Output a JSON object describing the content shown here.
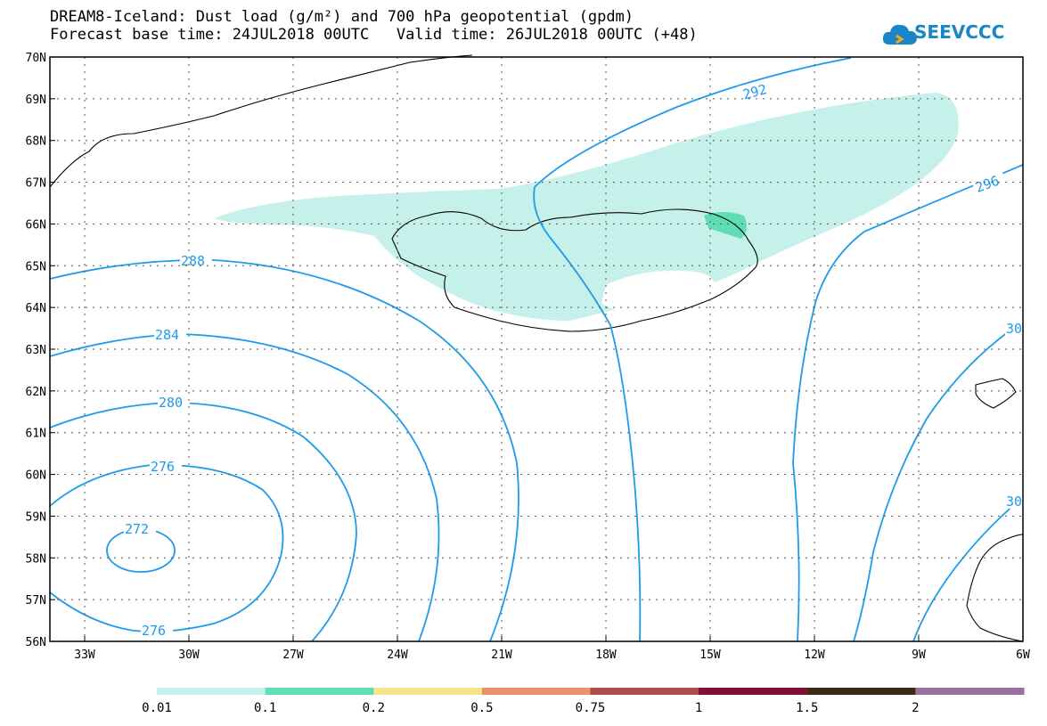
{
  "title": {
    "line1": "DREAM8-Iceland: Dust load (g/m²) and 700 hPa geopotential (gpdm)",
    "line2": "Forecast base time: 24JUL2018 00UTC   Valid time: 26JUL2018 00UTC (+48)"
  },
  "logo": {
    "text": "SEEVCCC",
    "icon": "cloud-icon"
  },
  "axes": {
    "lat_labels": [
      "70N",
      "69N",
      "68N",
      "67N",
      "66N",
      "65N",
      "64N",
      "63N",
      "62N",
      "61N",
      "60N",
      "59N",
      "58N",
      "57N",
      "56N"
    ],
    "lon_labels": [
      "33W",
      "30W",
      "27W",
      "24W",
      "21W",
      "18W",
      "15W",
      "12W",
      "9W",
      "6W"
    ]
  },
  "contours": {
    "labels": [
      "292",
      "296",
      "288",
      "284",
      "280",
      "276",
      "272",
      "276",
      "30",
      "30"
    ]
  },
  "colorbar": {
    "ticks": [
      "0.01",
      "0.1",
      "0.2",
      "0.5",
      "0.75",
      "1",
      "1.5",
      "2"
    ],
    "colors": [
      "#c6f1eb",
      "#5fdeb5",
      "#f3e58a",
      "#e8926c",
      "#a84e48",
      "#820f34",
      "#3c2a17",
      "#9a70a0"
    ]
  },
  "colors": {
    "dust_light": "#c6f1eb",
    "dust_mid": "#5fdeb5",
    "contour": "#1e9bea"
  }
}
